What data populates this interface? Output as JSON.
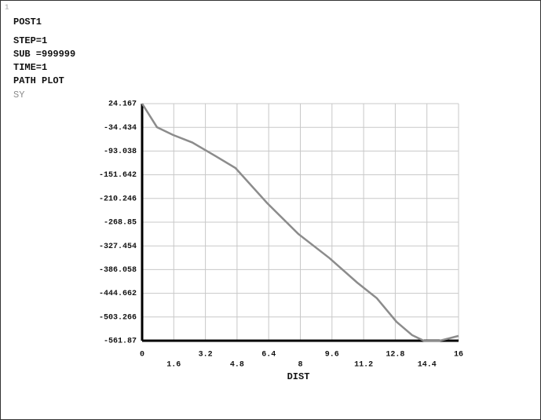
{
  "chart_data": {
    "type": "line",
    "window_number": "1",
    "annotations": [
      "POST1",
      "STEP=1",
      "SUB =999999",
      "TIME=1",
      "PATH PLOT"
    ],
    "xlabel": "DIST",
    "x": [
      0,
      0.75,
      1.55,
      2.54,
      3.73,
      4.72,
      6.31,
      7.9,
      9.48,
      10.87,
      11.87,
      12.86,
      13.65,
      14.25,
      15.04,
      16
    ],
    "series": [
      {
        "name": "SY",
        "color": "#8c8c8c",
        "values": [
          24.167,
          -34,
          -53,
          -72,
          -106,
          -135,
          -221,
          -298,
          -358,
          -418,
          -457,
          -515,
          -548,
          -562,
          -562,
          -550
        ]
      }
    ],
    "xlim": [
      0,
      16
    ],
    "xticks": [
      0,
      1.6,
      3.2,
      4.8,
      6.4,
      8,
      9.6,
      11.2,
      12.8,
      14.4,
      16
    ],
    "ylim": [
      -561.87,
      24.167
    ],
    "yticks": [
      24.167,
      -34.434,
      -93.038,
      -151.642,
      -210.246,
      -268.85,
      -327.454,
      -386.058,
      -444.662,
      -503.266,
      -561.87
    ],
    "grid": true
  }
}
